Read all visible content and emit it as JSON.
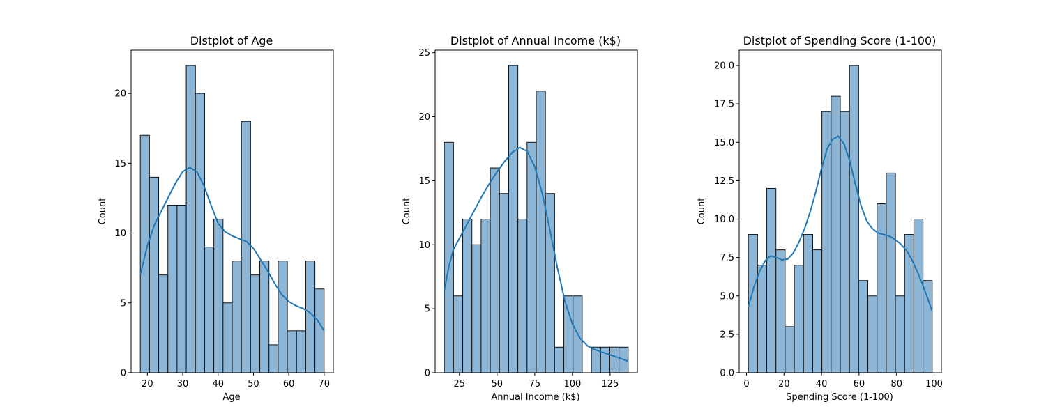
{
  "chart_data": [
    {
      "type": "bar",
      "title": "Distplot of Age",
      "xlabel": "Age",
      "ylabel": "Count",
      "xlim": [
        15.4,
        72.6
      ],
      "ylim": [
        0,
        23.1
      ],
      "xticks": [
        20,
        30,
        40,
        50,
        60,
        70
      ],
      "yticks": [
        0,
        5,
        10,
        15,
        20
      ],
      "ytick_labels": [
        "0",
        "5",
        "10",
        "15",
        "20"
      ],
      "bin_edges": [
        18,
        20.6,
        23.2,
        25.8,
        28.4,
        31,
        33.6,
        36.2,
        38.8,
        41.4,
        44,
        46.6,
        49.2,
        51.8,
        54.4,
        57,
        59.6,
        62.2,
        64.8,
        67.4,
        70
      ],
      "values": [
        17,
        14,
        7,
        12,
        12,
        22,
        20,
        9,
        11,
        5,
        8,
        18,
        7,
        8,
        2,
        8,
        3,
        3,
        8,
        6
      ],
      "kde": [
        [
          18,
          7.0
        ],
        [
          20,
          9.1
        ],
        [
          22,
          10.6
        ],
        [
          24,
          11.6
        ],
        [
          26,
          12.6
        ],
        [
          28,
          13.6
        ],
        [
          30,
          14.4
        ],
        [
          32,
          14.7
        ],
        [
          34,
          14.4
        ],
        [
          36,
          13.4
        ],
        [
          38,
          12.0
        ],
        [
          40,
          10.7
        ],
        [
          42,
          10.1
        ],
        [
          44,
          9.8
        ],
        [
          46,
          9.6
        ],
        [
          48,
          9.4
        ],
        [
          50,
          8.9
        ],
        [
          52,
          8.1
        ],
        [
          54,
          7.3
        ],
        [
          56,
          6.4
        ],
        [
          58,
          5.6
        ],
        [
          60,
          5.1
        ],
        [
          62,
          4.8
        ],
        [
          64,
          4.6
        ],
        [
          66,
          4.3
        ],
        [
          68,
          3.8
        ],
        [
          70,
          3.0
        ]
      ]
    },
    {
      "type": "bar",
      "title": "Distplot of Annual Income (k$)",
      "xlabel": "Annual Income (k$)",
      "ylabel": "Count",
      "xlim": [
        8.9,
        143.1
      ],
      "ylim": [
        0,
        25.2
      ],
      "xticks": [
        25,
        50,
        75,
        100,
        125
      ],
      "yticks": [
        0,
        5,
        10,
        15,
        20,
        25
      ],
      "ytick_labels": [
        "0",
        "5",
        "10",
        "15",
        "20",
        "25"
      ],
      "bin_edges": [
        15,
        21.1,
        27.2,
        33.3,
        39.4,
        45.5,
        51.6,
        57.7,
        63.8,
        69.9,
        76,
        82.1,
        88.2,
        94.3,
        100.4,
        106.5,
        112.6,
        118.7,
        124.8,
        130.9,
        137
      ],
      "values": [
        18,
        6,
        12,
        10,
        12,
        16,
        14,
        24,
        12,
        18,
        22,
        14,
        2,
        6,
        6,
        0,
        2,
        2,
        2,
        2
      ],
      "kde": [
        [
          15,
          6.4
        ],
        [
          18,
          8.3
        ],
        [
          21,
          9.6
        ],
        [
          25,
          10.5
        ],
        [
          30,
          11.6
        ],
        [
          35,
          12.7
        ],
        [
          40,
          13.8
        ],
        [
          45,
          14.8
        ],
        [
          50,
          15.7
        ],
        [
          55,
          16.5
        ],
        [
          60,
          17.2
        ],
        [
          65,
          17.6
        ],
        [
          70,
          17.3
        ],
        [
          75,
          16.1
        ],
        [
          80,
          14.0
        ],
        [
          85,
          11.2
        ],
        [
          90,
          8.2
        ],
        [
          95,
          5.6
        ],
        [
          100,
          3.8
        ],
        [
          105,
          2.7
        ],
        [
          110,
          2.1
        ],
        [
          115,
          1.8
        ],
        [
          120,
          1.6
        ],
        [
          125,
          1.4
        ],
        [
          130,
          1.2
        ],
        [
          137,
          0.9
        ]
      ]
    },
    {
      "type": "bar",
      "title": "Distplot of Spending Score (1-100)",
      "xlabel": "Spending Score (1-100)",
      "ylabel": "Count",
      "xlim": [
        -3.9,
        103.9
      ],
      "ylim": [
        0,
        21.0
      ],
      "xticks": [
        0,
        20,
        40,
        60,
        80,
        100
      ],
      "yticks": [
        0,
        2.5,
        5,
        7.5,
        10,
        12.5,
        15,
        17.5,
        20
      ],
      "ytick_labels": [
        "0.0",
        "2.5",
        "5.0",
        "7.5",
        "10.0",
        "12.5",
        "15.0",
        "17.5",
        "20.0"
      ],
      "bin_edges": [
        1,
        5.9,
        10.8,
        15.7,
        20.6,
        25.5,
        30.4,
        35.3,
        40.2,
        45.1,
        50,
        54.9,
        59.8,
        64.7,
        69.6,
        74.5,
        79.4,
        84.3,
        89.2,
        94.1,
        99
      ],
      "values": [
        9,
        7,
        12,
        8,
        3,
        7,
        9,
        8,
        17,
        18,
        17,
        20,
        6,
        5,
        11,
        13,
        5,
        9,
        10,
        6
      ],
      "kde": [
        [
          1,
          4.3
        ],
        [
          4,
          5.6
        ],
        [
          7,
          6.6
        ],
        [
          10,
          7.3
        ],
        [
          13,
          7.6
        ],
        [
          16,
          7.5
        ],
        [
          19,
          7.35
        ],
        [
          22,
          7.4
        ],
        [
          25,
          7.8
        ],
        [
          28,
          8.5
        ],
        [
          31,
          9.4
        ],
        [
          34,
          10.5
        ],
        [
          37,
          11.8
        ],
        [
          40,
          13.3
        ],
        [
          43,
          14.6
        ],
        [
          46,
          15.2
        ],
        [
          49,
          15.4
        ],
        [
          52,
          14.9
        ],
        [
          55,
          13.8
        ],
        [
          58,
          12.3
        ],
        [
          61,
          10.9
        ],
        [
          64,
          9.9
        ],
        [
          67,
          9.4
        ],
        [
          70,
          9.1
        ],
        [
          73,
          9.0
        ],
        [
          76,
          8.9
        ],
        [
          79,
          8.7
        ],
        [
          82,
          8.4
        ],
        [
          85,
          8.0
        ],
        [
          88,
          7.4
        ],
        [
          91,
          6.6
        ],
        [
          94,
          5.7
        ],
        [
          97,
          4.7
        ],
        [
          99,
          4.0
        ]
      ]
    }
  ]
}
